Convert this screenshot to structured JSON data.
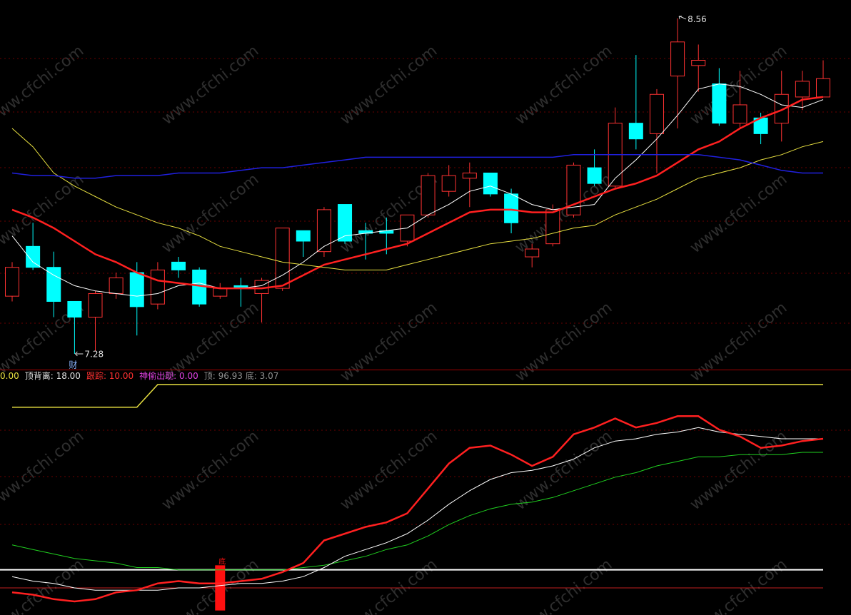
{
  "watermark": "www.cfchi.com",
  "chart_data": [
    {
      "type": "candlestick",
      "ylim": [
        7.22,
        8.63
      ],
      "up_color": "#ff3232",
      "down_color": "#00ffff",
      "open": [
        7.5,
        7.69,
        7.61,
        7.48,
        7.42,
        7.51,
        7.59,
        7.47,
        7.63,
        7.6,
        7.5,
        7.54,
        7.51,
        7.53,
        7.75,
        7.67,
        7.85,
        7.75,
        7.75,
        7.71,
        7.81,
        7.9,
        7.95,
        7.97,
        7.89,
        7.65,
        7.7,
        7.81,
        7.99,
        7.92,
        8.16,
        8.12,
        8.34,
        8.38,
        8.31,
        8.16,
        8.18,
        8.16,
        8.26,
        8.26
      ],
      "high": [
        7.63,
        7.78,
        7.67,
        7.48,
        7.52,
        7.59,
        7.63,
        7.63,
        7.65,
        7.61,
        7.55,
        7.57,
        7.57,
        7.76,
        7.75,
        7.84,
        7.85,
        7.78,
        7.8,
        7.81,
        7.97,
        8.0,
        8.01,
        7.97,
        7.91,
        7.7,
        7.85,
        8.01,
        8.06,
        8.22,
        8.42,
        8.29,
        8.56,
        8.46,
        8.37,
        8.36,
        8.2,
        8.36,
        8.36,
        8.4
      ],
      "low": [
        7.48,
        7.6,
        7.42,
        7.28,
        7.29,
        7.49,
        7.35,
        7.45,
        7.57,
        7.46,
        7.49,
        7.46,
        7.4,
        7.52,
        7.65,
        7.65,
        7.7,
        7.64,
        7.66,
        7.69,
        7.8,
        7.88,
        7.84,
        7.88,
        7.74,
        7.61,
        7.69,
        7.8,
        7.92,
        7.91,
        8.06,
        7.97,
        8.14,
        8.28,
        8.15,
        8.14,
        8.08,
        8.09,
        8.21,
        8.26
      ],
      "close": [
        7.61,
        7.61,
        7.48,
        7.42,
        7.51,
        7.57,
        7.46,
        7.6,
        7.6,
        7.47,
        7.53,
        7.53,
        7.56,
        7.76,
        7.71,
        7.83,
        7.71,
        7.74,
        7.74,
        7.81,
        7.96,
        7.96,
        7.97,
        7.89,
        7.78,
        7.68,
        7.83,
        8.0,
        7.93,
        8.16,
        8.1,
        8.27,
        8.47,
        8.4,
        8.16,
        8.23,
        8.12,
        8.27,
        8.32,
        8.33
      ],
      "series": [
        {
          "color": "#ffffff",
          "width": 1,
          "values": [
            7.73,
            7.63,
            7.58,
            7.54,
            7.52,
            7.51,
            7.5,
            7.51,
            7.54,
            7.55,
            7.53,
            7.53,
            7.54,
            7.58,
            7.63,
            7.69,
            7.73,
            7.74,
            7.75,
            7.76,
            7.81,
            7.85,
            7.9,
            7.92,
            7.89,
            7.85,
            7.83,
            7.84,
            7.85,
            7.95,
            8.02,
            8.1,
            8.19,
            8.29,
            8.31,
            8.3,
            8.27,
            8.23,
            8.22,
            8.25
          ]
        },
        {
          "color": "#ff2020",
          "width": 2.5,
          "values": [
            7.83,
            7.8,
            7.76,
            7.71,
            7.66,
            7.63,
            7.59,
            7.56,
            7.55,
            7.54,
            7.53,
            7.53,
            7.53,
            7.54,
            7.58,
            7.62,
            7.64,
            7.66,
            7.68,
            7.7,
            7.74,
            7.78,
            7.82,
            7.83,
            7.83,
            7.82,
            7.82,
            7.85,
            7.88,
            7.91,
            7.93,
            7.96,
            8.01,
            8.06,
            8.09,
            8.14,
            8.18,
            8.21,
            8.25,
            8.26
          ]
        },
        {
          "color": "#e8e040",
          "width": 1,
          "values": [
            8.14,
            8.07,
            7.97,
            7.92,
            7.88,
            7.84,
            7.81,
            7.78,
            7.76,
            7.73,
            7.69,
            7.67,
            7.65,
            7.63,
            7.62,
            7.61,
            7.6,
            7.6,
            7.6,
            7.62,
            7.64,
            7.66,
            7.68,
            7.7,
            7.71,
            7.72,
            7.74,
            7.76,
            7.77,
            7.81,
            7.84,
            7.87,
            7.91,
            7.95,
            7.97,
            7.99,
            8.02,
            8.04,
            8.07,
            8.09
          ]
        },
        {
          "color": "#2020e0",
          "width": 1.5,
          "values": [
            7.97,
            7.96,
            7.96,
            7.95,
            7.95,
            7.96,
            7.96,
            7.96,
            7.97,
            7.97,
            7.97,
            7.98,
            7.99,
            7.99,
            8.0,
            8.01,
            8.02,
            8.03,
            8.03,
            8.03,
            8.03,
            8.03,
            8.03,
            8.03,
            8.03,
            8.03,
            8.03,
            8.04,
            8.04,
            8.04,
            8.04,
            8.04,
            8.04,
            8.04,
            8.03,
            8.02,
            8.0,
            7.98,
            7.97,
            7.97
          ]
        }
      ],
      "marker": "财"
    },
    {
      "type": "line",
      "ylim": [
        -2,
        106
      ],
      "header": [
        {
          "text": "0.00",
          "color": "#e8e040"
        },
        {
          "text": "顶背离: 18.00",
          "color": "#e0e0e0"
        },
        {
          "text": "跟踪: 10.00",
          "color": "#ff3030"
        },
        {
          "text": "神偷出现: 0.00",
          "color": "#e040e0"
        },
        {
          "text": "顶: 96.93 底: 3.07",
          "color": "#909090"
        }
      ],
      "series": [
        {
          "color": "#e8e040",
          "width": 1.5,
          "values": [
            90,
            90,
            90,
            90,
            90,
            90,
            90,
            100,
            100,
            100,
            100,
            100,
            100,
            100,
            100,
            100,
            100,
            100,
            100,
            100,
            100,
            100,
            100,
            100,
            100,
            100,
            100,
            100,
            100,
            100,
            100,
            100,
            100,
            100,
            100,
            100,
            100,
            100,
            100,
            100
          ]
        },
        {
          "color": "#20d020",
          "width": 1,
          "values": [
            29,
            27,
            25,
            23,
            22,
            21,
            19,
            19,
            18,
            18,
            18,
            18,
            18,
            18,
            19,
            20,
            22,
            24,
            27,
            29,
            33,
            38,
            42,
            45,
            47,
            48,
            50,
            53,
            56,
            59,
            61,
            64,
            66,
            68,
            68,
            69,
            69,
            69,
            70,
            70
          ]
        },
        {
          "color": "#ffffff",
          "width": 1,
          "values": [
            15,
            13,
            12,
            10,
            9,
            9,
            9,
            9,
            10,
            10,
            11,
            12,
            12,
            13,
            15,
            19,
            24,
            27,
            30,
            34,
            40,
            47,
            53,
            58,
            61,
            62,
            64,
            67,
            72,
            75,
            76,
            78,
            79,
            81,
            79,
            78,
            77,
            76,
            76,
            76
          ]
        },
        {
          "color": "#ff2020",
          "width": 2.5,
          "values": [
            8,
            7,
            5,
            4,
            5,
            8,
            9,
            12,
            13,
            12,
            12,
            13,
            14,
            17,
            21,
            31,
            34,
            37,
            39,
            43,
            54,
            65,
            72,
            73,
            69,
            64,
            68,
            78,
            81,
            85,
            81,
            83,
            86,
            86,
            80,
            77,
            72,
            73,
            75,
            76
          ]
        }
      ],
      "hlines": [
        {
          "value": 18,
          "color": "#ffffff"
        },
        {
          "value": 10,
          "color": "#c02020"
        }
      ],
      "bar": {
        "index": 10,
        "value": 20,
        "color": "#ff1010",
        "label": "底"
      }
    }
  ]
}
